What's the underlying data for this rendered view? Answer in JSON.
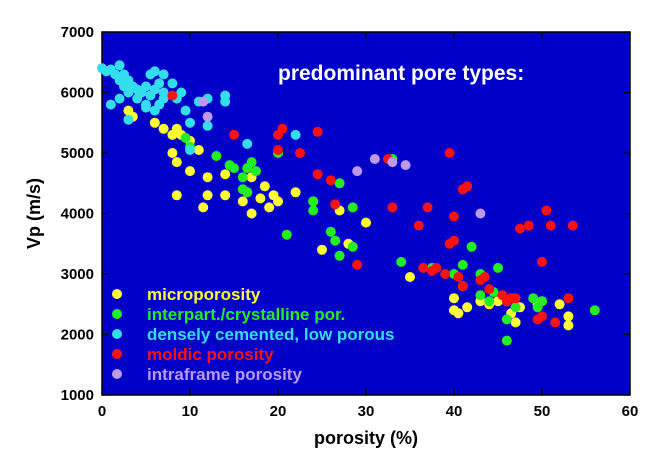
{
  "chart_data": {
    "type": "scatter",
    "title": "",
    "annotation": "predominant pore types:",
    "xlabel": "porosity (%)",
    "ylabel": "Vp (m/s)",
    "xlim": [
      0,
      60
    ],
    "ylim": [
      1000,
      7000
    ],
    "xticks": [
      0,
      10,
      20,
      30,
      40,
      50,
      60
    ],
    "yticks": [
      1000,
      2000,
      3000,
      4000,
      5000,
      6000,
      7000
    ],
    "grid": false,
    "background": "#0000c8",
    "legend_position": "bottom-left",
    "series": [
      {
        "name": "microporosity",
        "color": "#ffff33",
        "points": [
          [
            3,
            5700
          ],
          [
            3.5,
            5600
          ],
          [
            6,
            5500
          ],
          [
            7,
            5400
          ],
          [
            8,
            5300
          ],
          [
            8.5,
            5400
          ],
          [
            9,
            5300
          ],
          [
            10,
            5200
          ],
          [
            8,
            5000
          ],
          [
            8.5,
            4850
          ],
          [
            10,
            4700
          ],
          [
            11,
            5050
          ],
          [
            12,
            4600
          ],
          [
            14,
            4650
          ],
          [
            14,
            4300
          ],
          [
            16,
            4200
          ],
          [
            16.5,
            4350
          ],
          [
            17,
            4000
          ],
          [
            17,
            4600
          ],
          [
            18,
            4250
          ],
          [
            18.5,
            4450
          ],
          [
            19,
            4100
          ],
          [
            19.5,
            4300
          ],
          [
            20,
            4200
          ],
          [
            22,
            4350
          ],
          [
            24,
            4200
          ],
          [
            25,
            3400
          ],
          [
            27,
            4050
          ],
          [
            28,
            3500
          ],
          [
            30,
            3850
          ],
          [
            8.5,
            4300
          ],
          [
            12,
            4300
          ],
          [
            11.5,
            4100
          ],
          [
            35,
            2950
          ],
          [
            40,
            2400
          ],
          [
            40.5,
            2350
          ],
          [
            41,
            2800
          ],
          [
            41.5,
            2450
          ],
          [
            43,
            2550
          ],
          [
            44,
            2500
          ],
          [
            45,
            2550
          ],
          [
            46,
            2550
          ],
          [
            46.5,
            2350
          ],
          [
            47,
            2200
          ],
          [
            47.5,
            2450
          ],
          [
            49.5,
            2500
          ],
          [
            50,
            2550
          ],
          [
            53,
            2150
          ],
          [
            53,
            2300
          ],
          [
            52,
            2500
          ],
          [
            40,
            2600
          ]
        ]
      },
      {
        "name": "interpart./crystalline por.",
        "color": "#22ee22",
        "points": [
          [
            9.5,
            5250
          ],
          [
            10,
            5100
          ],
          [
            13,
            4950
          ],
          [
            14.5,
            4800
          ],
          [
            15,
            4750
          ],
          [
            16,
            4600
          ],
          [
            16.5,
            4750
          ],
          [
            17,
            4850
          ],
          [
            17.5,
            4700
          ],
          [
            16,
            4400
          ],
          [
            16.5,
            4350
          ],
          [
            20,
            5000
          ],
          [
            24,
            4200
          ],
          [
            24,
            4050
          ],
          [
            21,
            3650
          ],
          [
            26,
            3700
          ],
          [
            26.5,
            3550
          ],
          [
            27,
            4500
          ],
          [
            28.5,
            3450
          ],
          [
            28.5,
            4100
          ],
          [
            27,
            3300
          ],
          [
            33,
            4900
          ],
          [
            34,
            3200
          ],
          [
            37.5,
            3100
          ],
          [
            40,
            3000
          ],
          [
            41,
            3150
          ],
          [
            42,
            3450
          ],
          [
            43,
            3000
          ],
          [
            44,
            2550
          ],
          [
            45,
            3100
          ],
          [
            46,
            1900
          ],
          [
            47,
            2450
          ],
          [
            49,
            2600
          ],
          [
            49.5,
            2450
          ],
          [
            50,
            2550
          ],
          [
            56,
            2400
          ],
          [
            46,
            2250
          ],
          [
            44.5,
            2700
          ],
          [
            43,
            2650
          ]
        ]
      },
      {
        "name": "densely cemented, low porous",
        "color": "#33ddee",
        "points": [
          [
            0,
            6400
          ],
          [
            0.5,
            6350
          ],
          [
            1,
            6380
          ],
          [
            1.5,
            6300
          ],
          [
            2,
            6450
          ],
          [
            2,
            6200
          ],
          [
            2.5,
            6300
          ],
          [
            2.5,
            6100
          ],
          [
            3,
            6000
          ],
          [
            3,
            6200
          ],
          [
            3.5,
            6100
          ],
          [
            4,
            5900
          ],
          [
            4,
            6050
          ],
          [
            4.5,
            6000
          ],
          [
            5,
            5800
          ],
          [
            5,
            6100
          ],
          [
            5.5,
            5950
          ],
          [
            6,
            6050
          ],
          [
            6,
            5700
          ],
          [
            6.5,
            5800
          ],
          [
            7,
            5900
          ],
          [
            7,
            6000
          ],
          [
            5.5,
            6300
          ],
          [
            6,
            6350
          ],
          [
            6.5,
            6150
          ],
          [
            7,
            6300
          ],
          [
            8,
            6150
          ],
          [
            8.5,
            5900
          ],
          [
            9,
            6000
          ],
          [
            9.5,
            5700
          ],
          [
            10,
            5500
          ],
          [
            11,
            5850
          ],
          [
            12,
            5900
          ],
          [
            14,
            5950
          ],
          [
            14,
            5850
          ],
          [
            10,
            5050
          ],
          [
            1,
            5800
          ],
          [
            3,
            5550
          ],
          [
            5,
            5750
          ],
          [
            2,
            5900
          ],
          [
            22,
            5300
          ],
          [
            16.5,
            5150
          ],
          [
            12,
            5450
          ]
        ]
      },
      {
        "name": "moldic porosity",
        "color": "#ff1111",
        "points": [
          [
            8,
            5950
          ],
          [
            15,
            5300
          ],
          [
            20,
            5300
          ],
          [
            20.5,
            5400
          ],
          [
            24.5,
            5350
          ],
          [
            22.5,
            5000
          ],
          [
            20,
            5050
          ],
          [
            24.5,
            4650
          ],
          [
            26,
            4550
          ],
          [
            32.5,
            4900
          ],
          [
            26.5,
            4150
          ],
          [
            29,
            3150
          ],
          [
            33,
            4100
          ],
          [
            36,
            3800
          ],
          [
            36.5,
            3100
          ],
          [
            37,
            4100
          ],
          [
            37.5,
            3050
          ],
          [
            38,
            3100
          ],
          [
            39,
            3000
          ],
          [
            39.5,
            3500
          ],
          [
            40,
            3550
          ],
          [
            39.5,
            5000
          ],
          [
            41,
            4400
          ],
          [
            41.5,
            4450
          ],
          [
            40.5,
            2950
          ],
          [
            41,
            2800
          ],
          [
            43,
            2900
          ],
          [
            43.5,
            2950
          ],
          [
            44,
            2750
          ],
          [
            46,
            2550
          ],
          [
            46.5,
            2600
          ],
          [
            47,
            2600
          ],
          [
            47.5,
            3750
          ],
          [
            48.5,
            3800
          ],
          [
            50,
            3200
          ],
          [
            50,
            2300
          ],
          [
            50.5,
            4050
          ],
          [
            51,
            3800
          ],
          [
            51.5,
            2200
          ],
          [
            53,
            2600
          ],
          [
            53.5,
            3800
          ],
          [
            49.5,
            2250
          ],
          [
            45.5,
            2650
          ],
          [
            40,
            3950
          ]
        ]
      },
      {
        "name": "intraframe porosity",
        "color": "#bb99ee",
        "points": [
          [
            11.5,
            5850
          ],
          [
            12,
            5600
          ],
          [
            29,
            4700
          ],
          [
            31,
            4900
          ],
          [
            33,
            4850
          ],
          [
            34.5,
            4800
          ],
          [
            43,
            4000
          ]
        ]
      }
    ]
  }
}
